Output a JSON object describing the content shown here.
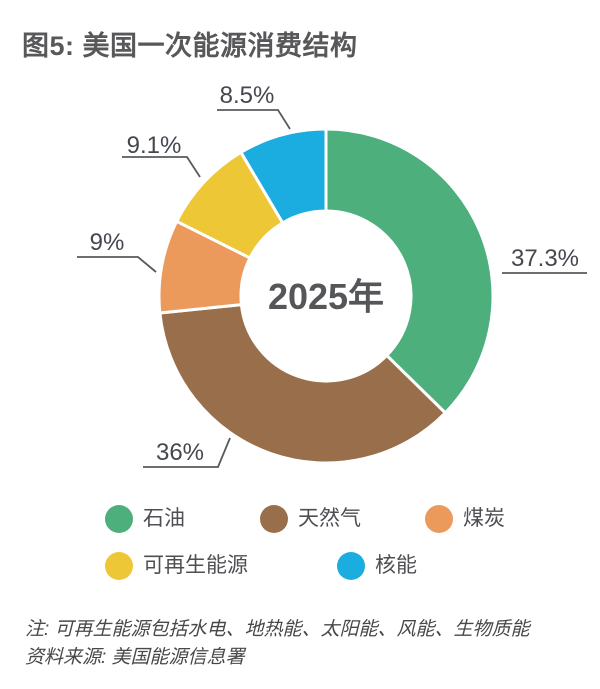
{
  "figure": {
    "title": "图5: 美国一次能源消费结构",
    "note": "注: 可再生能源包括水电、地热能、太阳能、风能、生物质能",
    "source": "资料来源: 美国能源信息署"
  },
  "chart_data": {
    "type": "pie",
    "subtype": "donut",
    "title": "美国一次能源消费结构",
    "center_label": "2025年",
    "unit": "%",
    "start_angle_deg": 0,
    "direction": "clockwise",
    "legend_position": "bottom",
    "data_labels": "outside-with-leader-lines",
    "series": [
      {
        "key": "oil",
        "label": "石油",
        "value": 37.3,
        "color": "#4DAF7C"
      },
      {
        "key": "natural-gas",
        "label": "天然气",
        "value": 36,
        "color": "#986F4A"
      },
      {
        "key": "coal",
        "label": "煤炭",
        "value": 9,
        "color": "#EC9A5C"
      },
      {
        "key": "renewables",
        "label": "可再生能源",
        "value": 9.1,
        "color": "#EDC736"
      },
      {
        "key": "nuclear",
        "label": "核能",
        "value": 8.5,
        "color": "#1BACE0"
      }
    ]
  },
  "colors": {
    "title_text": "#58585A",
    "label_text": "#45474F",
    "leader_line": "#58595B",
    "center_text": "#55565A",
    "legend_text": "#4E4F52",
    "note_text": "#48484A",
    "slice_gap": "#FFFFFF",
    "background": "#FFFFFF"
  }
}
